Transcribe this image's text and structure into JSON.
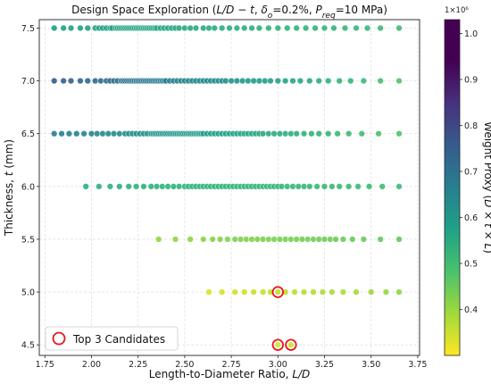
{
  "chart_data": {
    "type": "scatter",
    "title_parts": [
      {
        "t": "Design Space Exploration (",
        "i": false
      },
      {
        "t": "L/D − t",
        "i": true
      },
      {
        "t": ", ",
        "i": false
      },
      {
        "t": "δ",
        "i": true
      },
      {
        "t": "o",
        "i": true,
        "sub": true
      },
      {
        "t": "=0.2%, ",
        "i": false
      },
      {
        "t": "P",
        "i": true
      },
      {
        "t": "req",
        "i": true,
        "sub": true
      },
      {
        "t": "=10 MPa)",
        "i": false
      }
    ],
    "xlabel_parts": [
      {
        "t": "Length-to-Diameter Ratio, ",
        "i": false
      },
      {
        "t": "L/D",
        "i": true
      }
    ],
    "ylabel_parts": [
      {
        "t": "Thickness, ",
        "i": false
      },
      {
        "t": "t",
        "i": true
      },
      {
        "t": " (mm)",
        "i": false
      }
    ],
    "colorbar_label_parts": [
      {
        "t": "Weight Proxy (",
        "i": false
      },
      {
        "t": "D × t × L",
        "i": true
      },
      {
        "t": ")",
        "i": false
      }
    ],
    "colorbar_offset_text": "1×10⁶",
    "xlim": [
      1.72,
      3.76
    ],
    "ylim": [
      4.4,
      7.58
    ],
    "xticks": [
      1.75,
      2.0,
      2.25,
      2.5,
      2.75,
      3.0,
      3.25,
      3.5,
      3.75
    ],
    "xtick_labels": [
      "1.75",
      "2.00",
      "2.25",
      "2.50",
      "2.75",
      "3.00",
      "3.25",
      "3.50",
      "3.75"
    ],
    "yticks": [
      4.5,
      5.0,
      5.5,
      6.0,
      6.5,
      7.0,
      7.5
    ],
    "ytick_labels": [
      "4.5",
      "5.0",
      "5.5",
      "6.0",
      "6.5",
      "7.0",
      "7.5"
    ],
    "colorbar_range": [
      0.3,
      1.03
    ],
    "colorbar_ticks": [
      0.4,
      0.5,
      0.6,
      0.7,
      0.8,
      0.9,
      1.0
    ],
    "colorbar_tick_labels": [
      "0.4",
      "0.5",
      "0.6",
      "0.7",
      "0.8",
      "0.9",
      "1.0"
    ],
    "colormap": "viridis_r",
    "grid": true,
    "legend": {
      "label": "Top 3 Candidates",
      "placement": "lower-left",
      "marker_color": "#e8141c"
    },
    "rows": [
      {
        "t": 7.5,
        "x_start": 1.8,
        "x_end": 3.65,
        "w_start": 0.62,
        "w_end": 0.53,
        "x": [
          1.8,
          1.85,
          1.89,
          1.94,
          1.98,
          2.02,
          2.04,
          2.06,
          2.08,
          2.1,
          2.11,
          2.13,
          2.14,
          2.15,
          2.16,
          2.17,
          2.18,
          2.19,
          2.2,
          2.21,
          2.22,
          2.23,
          2.24,
          2.25,
          2.26,
          2.27,
          2.28,
          2.29,
          2.3,
          2.31,
          2.32,
          2.33,
          2.34,
          2.35,
          2.37,
          2.39,
          2.41,
          2.43,
          2.45,
          2.47,
          2.5,
          2.53,
          2.56,
          2.6,
          2.63,
          2.66,
          2.7,
          2.74,
          2.78,
          2.82,
          2.86,
          2.9,
          2.95,
          3.0,
          3.05,
          3.1,
          3.15,
          3.2,
          3.25,
          3.3,
          3.36,
          3.42,
          3.48,
          3.55,
          3.65
        ]
      },
      {
        "t": 7.0,
        "x_start": 1.8,
        "x_end": 3.65,
        "w_start": 0.82,
        "w_end": 0.5,
        "x": [
          1.8,
          1.85,
          1.89,
          1.94,
          1.98,
          2.02,
          2.05,
          2.08,
          2.1,
          2.12,
          2.14,
          2.16,
          2.17,
          2.18,
          2.19,
          2.2,
          2.21,
          2.22,
          2.23,
          2.24,
          2.25,
          2.26,
          2.27,
          2.28,
          2.29,
          2.3,
          2.31,
          2.32,
          2.33,
          2.34,
          2.35,
          2.36,
          2.37,
          2.38,
          2.39,
          2.4,
          2.42,
          2.44,
          2.46,
          2.48,
          2.5,
          2.52,
          2.54,
          2.56,
          2.58,
          2.6,
          2.62,
          2.64,
          2.66,
          2.68,
          2.7,
          2.72,
          2.75,
          2.78,
          2.81,
          2.84,
          2.87,
          2.9,
          2.93,
          2.96,
          3.0,
          3.04,
          3.08,
          3.12,
          3.17,
          3.22,
          3.27,
          3.33,
          3.39,
          3.46,
          3.55,
          3.65
        ]
      },
      {
        "t": 6.5,
        "x_start": 1.8,
        "x_end": 3.65,
        "w_start": 0.72,
        "w_end": 0.5,
        "x": [
          1.8,
          1.84,
          1.88,
          1.92,
          1.96,
          2.0,
          2.03,
          2.06,
          2.09,
          2.12,
          2.15,
          2.18,
          2.2,
          2.22,
          2.24,
          2.26,
          2.28,
          2.3,
          2.32,
          2.33,
          2.34,
          2.35,
          2.36,
          2.37,
          2.38,
          2.39,
          2.4,
          2.41,
          2.42,
          2.43,
          2.44,
          2.45,
          2.46,
          2.47,
          2.48,
          2.49,
          2.5,
          2.51,
          2.52,
          2.53,
          2.54,
          2.55,
          2.56,
          2.57,
          2.58,
          2.59,
          2.6,
          2.62,
          2.64,
          2.66,
          2.68,
          2.7,
          2.72,
          2.74,
          2.76,
          2.78,
          2.8,
          2.82,
          2.84,
          2.86,
          2.88,
          2.9,
          2.92,
          2.95,
          2.98,
          3.01,
          3.04,
          3.07,
          3.1,
          3.14,
          3.18,
          3.22,
          3.27,
          3.32,
          3.38,
          3.45,
          3.54,
          3.65
        ]
      },
      {
        "t": 6.0,
        "x_start": 1.97,
        "x_end": 3.65,
        "w_start": 0.57,
        "w_end": 0.53,
        "x": [
          1.97,
          2.04,
          2.1,
          2.15,
          2.2,
          2.24,
          2.28,
          2.32,
          2.35,
          2.38,
          2.41,
          2.44,
          2.47,
          2.5,
          2.52,
          2.54,
          2.56,
          2.58,
          2.6,
          2.62,
          2.64,
          2.66,
          2.68,
          2.7,
          2.72,
          2.74,
          2.76,
          2.78,
          2.8,
          2.82,
          2.84,
          2.86,
          2.88,
          2.9,
          2.92,
          2.94,
          2.96,
          2.98,
          3.0,
          3.02,
          3.05,
          3.08,
          3.11,
          3.14,
          3.17,
          3.21,
          3.25,
          3.29,
          3.33,
          3.38,
          3.43,
          3.49,
          3.56,
          3.65
        ]
      },
      {
        "t": 5.5,
        "x_start": 2.36,
        "x_end": 3.65,
        "w_start": 0.42,
        "w_end": 0.48,
        "x": [
          2.36,
          2.45,
          2.53,
          2.6,
          2.65,
          2.69,
          2.73,
          2.77,
          2.8,
          2.83,
          2.86,
          2.89,
          2.92,
          2.95,
          2.98,
          3.01,
          3.04,
          3.07,
          3.1,
          3.13,
          3.16,
          3.19,
          3.22,
          3.25,
          3.28,
          3.31,
          3.35,
          3.4,
          3.46,
          3.55,
          3.65
        ]
      },
      {
        "t": 5.0,
        "x_start": 2.63,
        "x_end": 3.65,
        "w_start": 0.34,
        "w_end": 0.42,
        "x": [
          2.63,
          2.7,
          2.77,
          2.82,
          2.87,
          2.92,
          2.96,
          3.0,
          3.04,
          3.09,
          3.14,
          3.19,
          3.24,
          3.29,
          3.35,
          3.42,
          3.5,
          3.58,
          3.65
        ]
      },
      {
        "t": 4.5,
        "x_start": 3.0,
        "x_end": 3.07,
        "w_start": 0.34,
        "w_end": 0.35,
        "x": [
          3.0,
          3.07
        ]
      }
    ],
    "top3_candidates": [
      {
        "x": 3.0,
        "t": 5.0
      },
      {
        "x": 3.0,
        "t": 4.5
      },
      {
        "x": 3.07,
        "t": 4.5
      }
    ]
  }
}
